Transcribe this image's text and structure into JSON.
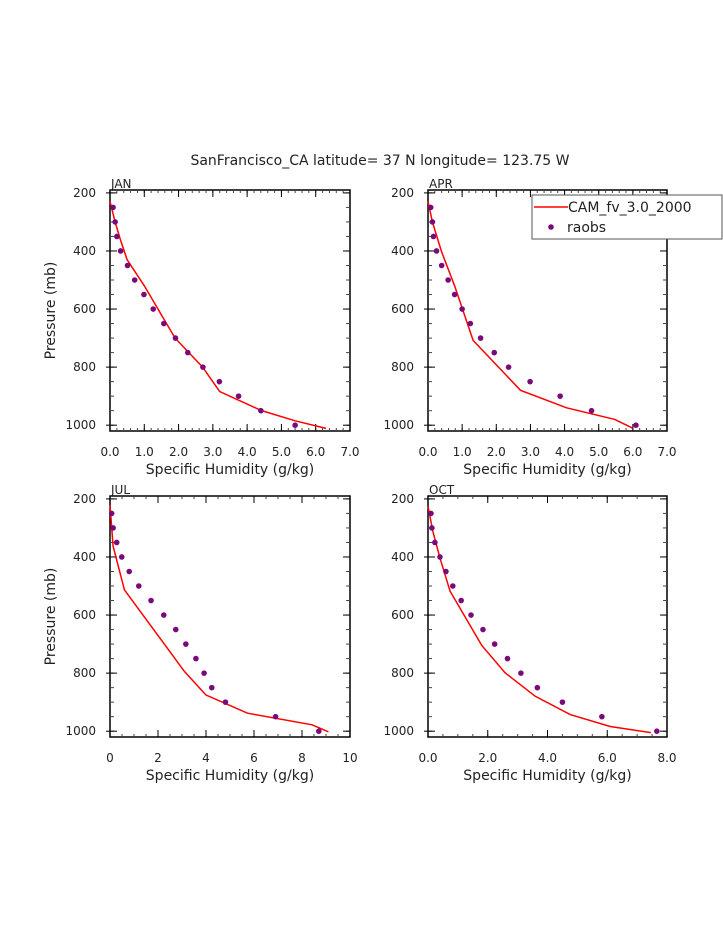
{
  "chart_data": {
    "type": "line",
    "title": "SanFrancisco_CA  latitude= 37 N longitude= 123.75 W",
    "colors": {
      "model": "#ff0000",
      "obs": "#7a0a7a"
    },
    "legend": {
      "placement": "top-right",
      "entries": [
        "CAM_fv_3.0_2000",
        "raobs"
      ]
    },
    "panels": [
      {
        "name": "JAN",
        "xlabel": "Specific Humidity (g/kg)",
        "ylabel": "Pressure (mb)",
        "xlim": [
          0,
          7
        ],
        "ylim": [
          1020,
          190
        ],
        "xticks": [
          0,
          1,
          2,
          3,
          4,
          5,
          6,
          7
        ],
        "xticklabels": [
          "0.0",
          "1.0",
          "2.0",
          "3.0",
          "4.0",
          "5.0",
          "6.0",
          "7.0"
        ],
        "xminor": 0.2,
        "yticks": [
          200,
          400,
          600,
          800,
          1000
        ],
        "yticklabels": [
          "200",
          "400",
          "600",
          "800",
          "1000"
        ],
        "series": [
          {
            "name": "CAM_fv_3.0_2000",
            "kind": "line",
            "x": [
              0.0,
              0.15,
              0.3,
              0.5,
              1.0,
              1.5,
              1.9,
              2.7,
              3.2,
              4.4,
              5.4,
              6.3
            ],
            "y": [
              229,
              300,
              360,
              430,
              520,
              620,
              700,
              800,
              884,
              949,
              985,
              1011
            ]
          },
          {
            "name": "raobs",
            "kind": "scatter",
            "x": [
              0.09,
              0.15,
              0.2,
              0.31,
              0.51,
              0.72,
              0.99,
              1.26,
              1.57,
              1.91,
              2.27,
              2.71,
              3.19,
              3.75,
              4.4,
              5.4
            ],
            "y": [
              250,
              300,
              350,
              400,
              450,
              500,
              550,
              600,
              650,
              700,
              750,
              800,
              850,
              900,
              950,
              1000
            ]
          }
        ]
      },
      {
        "name": "APR",
        "xlabel": "Specific Humidity (g/kg)",
        "ylabel": "",
        "xlim": [
          0,
          7
        ],
        "ylim": [
          1020,
          190
        ],
        "xticks": [
          0,
          1,
          2,
          3,
          4,
          5,
          6,
          7
        ],
        "xticklabels": [
          "0.0",
          "1.0",
          "2.0",
          "3.0",
          "4.0",
          "5.0",
          "6.0",
          "7.0"
        ],
        "xminor": 0.2,
        "yticks": [
          200,
          400,
          600,
          800,
          1000
        ],
        "yticklabels": [
          "200",
          "400",
          "600",
          "800",
          "1000"
        ],
        "series": [
          {
            "name": "CAM_fv_3.0_2000",
            "kind": "line",
            "x": [
              0.0,
              0.13,
              0.39,
              0.78,
              1.32,
              2.71,
              4.06,
              5.47,
              5.99
            ],
            "y": [
              229,
              300,
              400,
              520,
              708,
              880,
              940,
              980,
              1010
            ]
          },
          {
            "name": "raobs",
            "kind": "scatter",
            "x": [
              0.08,
              0.13,
              0.16,
              0.25,
              0.4,
              0.59,
              0.78,
              1.0,
              1.24,
              1.54,
              1.94,
              2.36,
              2.99,
              3.87,
              4.79,
              6.09
            ],
            "y": [
              250,
              300,
              350,
              400,
              450,
              500,
              550,
              600,
              650,
              700,
              750,
              800,
              850,
              900,
              950,
              1000
            ]
          }
        ],
        "show_legend": true
      },
      {
        "name": "JUL",
        "xlabel": "Specific Humidity (g/kg)",
        "ylabel": "Pressure (mb)",
        "xlim": [
          0,
          10
        ],
        "ylim": [
          1020,
          190
        ],
        "xticks": [
          0,
          2,
          4,
          6,
          8,
          10
        ],
        "xticklabels": [
          "0",
          "2",
          "4",
          "6",
          "8",
          "10"
        ],
        "xminor": 0.5,
        "yticks": [
          200,
          400,
          600,
          800,
          1000
        ],
        "yticklabels": [
          "200",
          "400",
          "600",
          "800",
          "1000"
        ],
        "series": [
          {
            "name": "CAM_fv_3.0_2000",
            "kind": "line",
            "x": [
              0.0,
              0.13,
              0.6,
              3.1,
              3.99,
              5.73,
              8.42,
              9.1
            ],
            "y": [
              221,
              363,
              513,
              794,
              875,
              938,
              978,
              1002
            ]
          },
          {
            "name": "raobs",
            "kind": "scatter",
            "x": [
              0.07,
              0.13,
              0.28,
              0.49,
              0.8,
              1.2,
              1.71,
              2.24,
              2.74,
              3.16,
              3.58,
              3.92,
              4.24,
              4.81,
              6.9,
              8.7
            ],
            "y": [
              250,
              300,
              350,
              400,
              450,
              500,
              550,
              600,
              650,
              700,
              750,
              800,
              850,
              900,
              950,
              1000
            ]
          }
        ]
      },
      {
        "name": "OCT",
        "xlabel": "Specific Humidity (g/kg)",
        "ylabel": "",
        "xlim": [
          0,
          8
        ],
        "ylim": [
          1020,
          190
        ],
        "xticks": [
          0,
          2,
          4,
          6,
          8
        ],
        "xticklabels": [
          "0.0",
          "2.0",
          "4.0",
          "6.0",
          "8.0"
        ],
        "xminor": 0.5,
        "yticks": [
          200,
          400,
          600,
          800,
          1000
        ],
        "yticklabels": [
          "200",
          "400",
          "600",
          "800",
          "1000"
        ],
        "series": [
          {
            "name": "CAM_fv_3.0_2000",
            "kind": "line",
            "x": [
              0.0,
              0.16,
              0.4,
              0.74,
              1.8,
              2.58,
              3.59,
              4.76,
              6.1,
              7.46
            ],
            "y": [
              225,
              311,
              403,
              518,
              705,
              799,
              880,
              943,
              984,
              1005
            ]
          },
          {
            "name": "raobs",
            "kind": "scatter",
            "x": [
              0.1,
              0.13,
              0.23,
              0.4,
              0.6,
              0.83,
              1.11,
              1.44,
              1.84,
              2.23,
              2.66,
              3.11,
              3.66,
              4.5,
              5.82,
              7.66
            ],
            "y": [
              250,
              300,
              350,
              400,
              450,
              500,
              550,
              600,
              650,
              700,
              750,
              800,
              850,
              900,
              950,
              1000
            ]
          }
        ]
      }
    ]
  }
}
